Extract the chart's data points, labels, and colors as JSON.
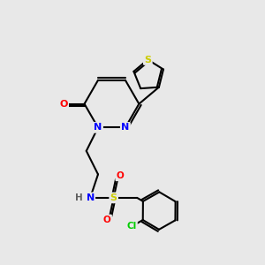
{
  "background_color": "#e8e8e8",
  "atom_colors": {
    "C": "#000000",
    "N": "#0000ff",
    "O": "#ff0000",
    "S": "#cccc00",
    "Cl": "#00cc00",
    "H": "#606060"
  },
  "bond_color": "#000000",
  "bond_width": 1.5
}
